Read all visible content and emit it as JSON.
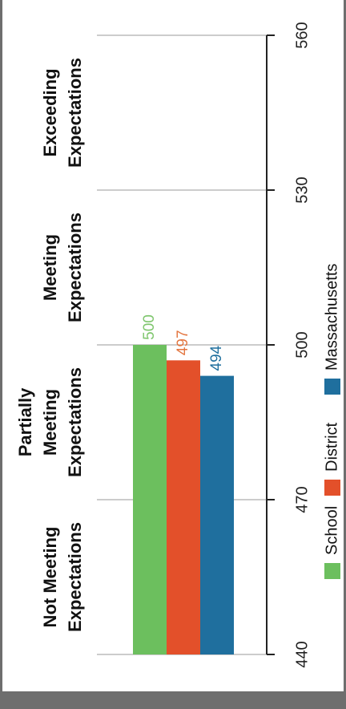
{
  "chart_data": {
    "type": "bar",
    "orientation": "horizontal-rotated",
    "title": "",
    "xlabel": "",
    "ylabel": "",
    "ylim": [
      440,
      560
    ],
    "axis_ticks": [
      "440",
      "470",
      "500",
      "530",
      "560"
    ],
    "tick_values": [
      440,
      470,
      500,
      530,
      560
    ],
    "bands": [
      {
        "label_lines": [
          "Not Meeting",
          "Expectations"
        ],
        "from": 440,
        "to": 470
      },
      {
        "label_lines": [
          "Partially",
          "Meeting",
          "Expectations"
        ],
        "from": 470,
        "to": 500
      },
      {
        "label_lines": [
          "Meeting",
          "Expectations"
        ],
        "from": 500,
        "to": 530
      },
      {
        "label_lines": [
          "Exceeding",
          "Expectations"
        ],
        "from": 530,
        "to": 560
      }
    ],
    "series": [
      {
        "name": "School",
        "value": 500,
        "label": "500",
        "color": "#6cbf5e",
        "label_color": "#7fc66e"
      },
      {
        "name": "District",
        "value": 497,
        "label": "497",
        "color": "#e3502a",
        "label_color": "#e3753f"
      },
      {
        "name": "Massachusetts",
        "value": 494,
        "label": "494",
        "color": "#1f6f9e",
        "label_color": "#1f6f9e"
      }
    ],
    "legend_position": "bottom",
    "grid": true
  }
}
